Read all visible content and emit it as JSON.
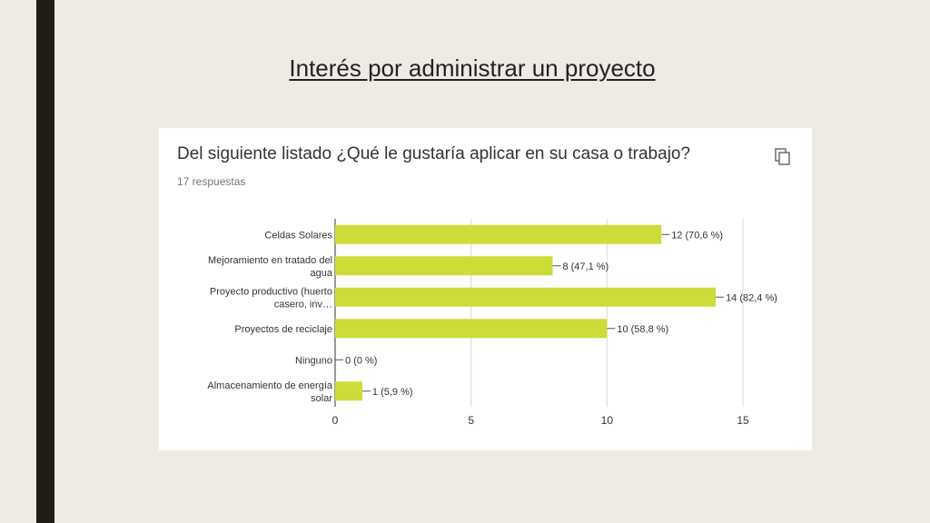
{
  "slide": {
    "title": "Interés por administrar un proyecto"
  },
  "card": {
    "question": "Del siguiente listado ¿Qué le gustaría aplicar en su casa o trabajo?",
    "responses": "17 respuestas",
    "copy_icon": "copy-icon"
  },
  "chart_data": {
    "type": "bar",
    "orientation": "horizontal",
    "categories": [
      [
        "Celdas Solares"
      ],
      [
        "Mejoramiento en tratado del",
        "agua"
      ],
      [
        "Proyecto productivo (huerto",
        "casero, inv…"
      ],
      [
        "Proyectos de reciclaje"
      ],
      [
        "Ninguno"
      ],
      [
        "Almacenamiento de energía",
        "solar"
      ]
    ],
    "values": [
      12,
      8,
      14,
      10,
      0,
      1
    ],
    "value_labels": [
      "12 (70,6 %)",
      "8 (47,1 %)",
      "14 (82,4 %)",
      "10 (58,8 %)",
      "0 (0 %)",
      "1 (5,9 %)"
    ],
    "xlim": [
      0,
      15
    ],
    "xticks": [
      0,
      5,
      10,
      15
    ],
    "grid": true,
    "bar_color": "#cddc39"
  }
}
